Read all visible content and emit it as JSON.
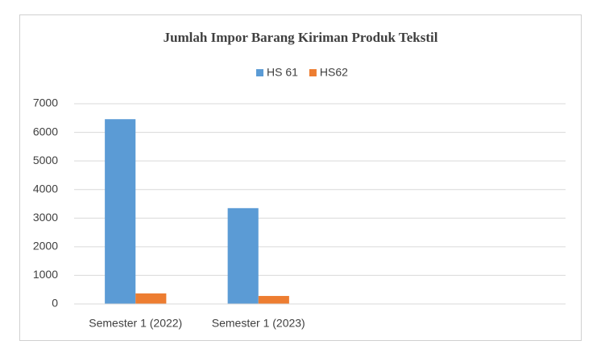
{
  "chart_data": {
    "type": "bar",
    "title": "Jumlah Impor Barang Kiriman Produk Tekstil",
    "categories": [
      "Semester 1 (2022)",
      "Semester 1 (2023)",
      null,
      null
    ],
    "series": [
      {
        "name": "HS 61",
        "color": "#5b9bd5",
        "values": [
          6460,
          3350,
          null,
          null
        ]
      },
      {
        "name": "HS62",
        "color": "#ed7d31",
        "values": [
          370,
          280,
          null,
          null
        ]
      }
    ],
    "ylim": [
      0,
      7000
    ],
    "yticks": [
      0,
      1000,
      2000,
      3000,
      4000,
      5000,
      6000,
      7000
    ],
    "grid": true,
    "legend": "top"
  }
}
